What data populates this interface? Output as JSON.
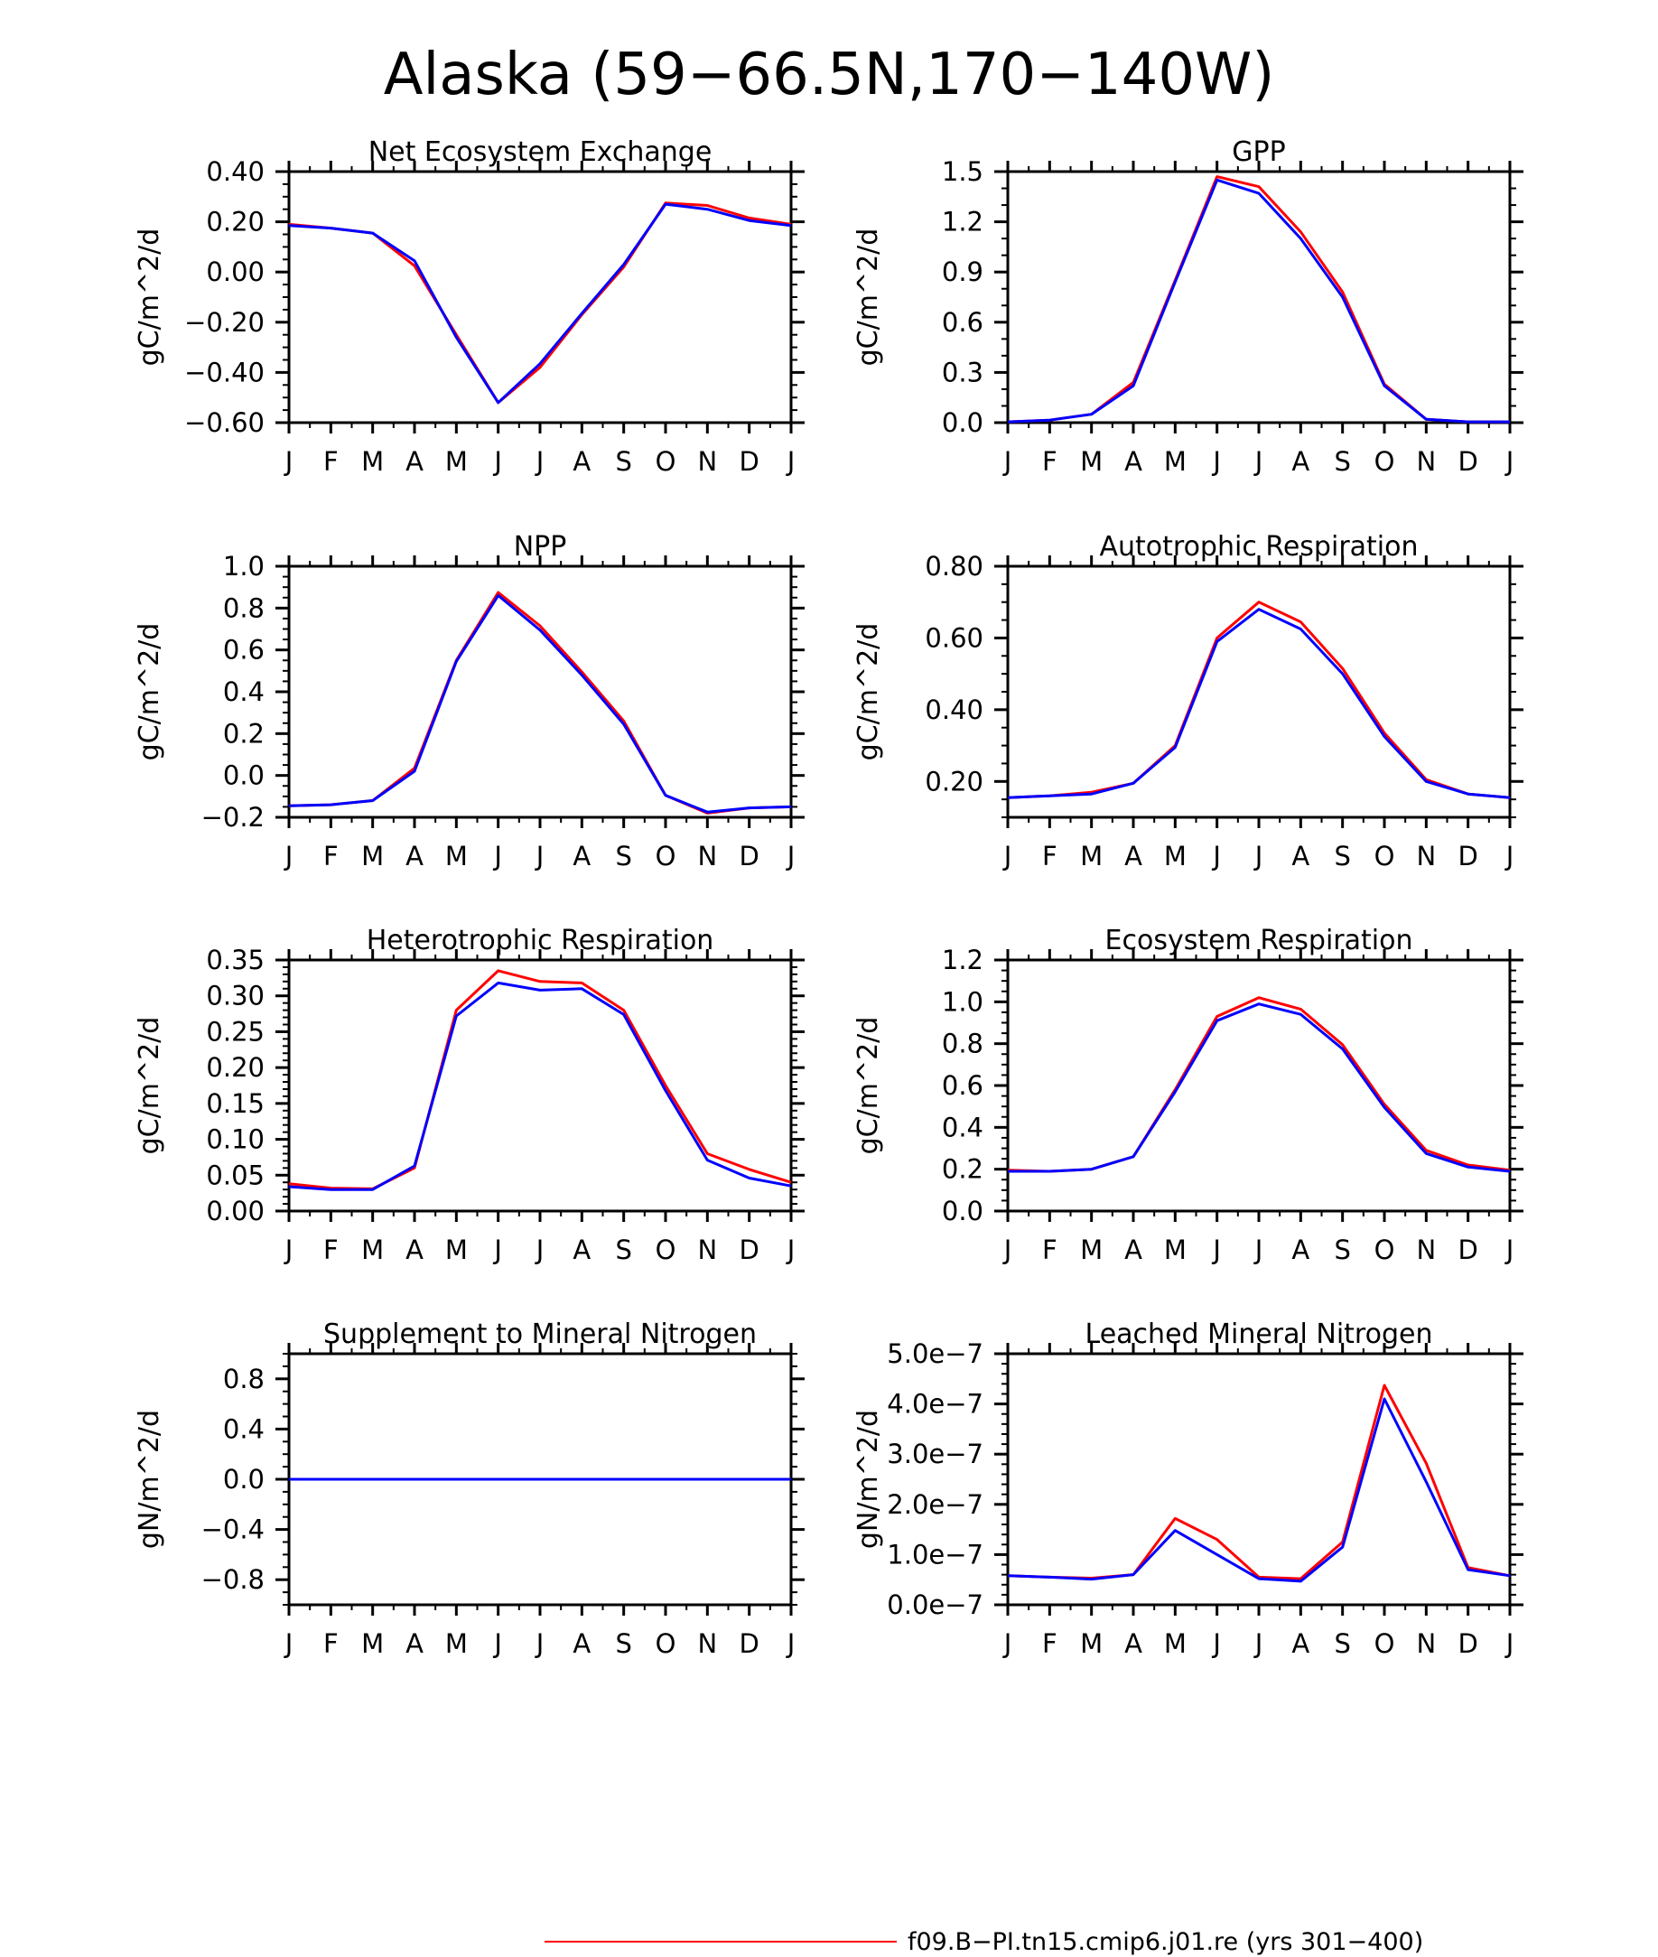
{
  "title": "Alaska (59−66.5N,170−140W)",
  "legend": [
    {
      "label": "f09.B−PI.tn15.cmip6.j01.re (yrs 301−400)",
      "color": "#ff0000"
    }
  ],
  "series_colors": [
    "#ff0000",
    "#0000ff"
  ],
  "chart_data": [
    {
      "type": "line",
      "title": "Net Ecosystem Exchange",
      "ylabel": "gC/m^2/d",
      "x": [
        "J",
        "F",
        "M",
        "A",
        "M",
        "J",
        "J",
        "A",
        "S",
        "O",
        "N",
        "D",
        "J"
      ],
      "ylim": [
        -0.6,
        0.4
      ],
      "yticks": [
        -0.6,
        -0.4,
        -0.2,
        0.0,
        0.2,
        0.4
      ],
      "ytick_labels": [
        "−0.60",
        "−0.40",
        "−0.20",
        "0.00",
        "0.20",
        "0.40"
      ],
      "yminor": 0.05,
      "series": [
        {
          "values": [
            0.19,
            0.175,
            0.155,
            0.025,
            -0.25,
            -0.52,
            -0.38,
            -0.17,
            0.02,
            0.275,
            0.265,
            0.215,
            0.19
          ]
        },
        {
          "values": [
            0.185,
            0.175,
            0.155,
            0.045,
            -0.26,
            -0.52,
            -0.365,
            -0.165,
            0.03,
            0.27,
            0.25,
            0.205,
            0.185
          ]
        }
      ]
    },
    {
      "type": "line",
      "title": "GPP",
      "ylabel": "gC/m^2/d",
      "x": [
        "J",
        "F",
        "M",
        "A",
        "M",
        "J",
        "J",
        "A",
        "S",
        "O",
        "N",
        "D",
        "J"
      ],
      "ylim": [
        0,
        1.5
      ],
      "yticks": [
        0,
        0.3,
        0.6,
        0.9,
        1.2,
        1.5
      ],
      "ytick_labels": [
        "0.0",
        "0.3",
        "0.6",
        "0.9",
        "1.2",
        "1.5"
      ],
      "yminor": 0.1,
      "series": [
        {
          "values": [
            0.005,
            0.015,
            0.05,
            0.24,
            0.85,
            1.47,
            1.41,
            1.14,
            0.78,
            0.23,
            0.02,
            0.005,
            0.005
          ]
        },
        {
          "values": [
            0.005,
            0.015,
            0.05,
            0.22,
            0.84,
            1.45,
            1.37,
            1.1,
            0.75,
            0.22,
            0.02,
            0.005,
            0.005
          ]
        }
      ]
    },
    {
      "type": "line",
      "title": "NPP",
      "ylabel": "gC/m^2/d",
      "x": [
        "J",
        "F",
        "M",
        "A",
        "M",
        "J",
        "J",
        "A",
        "S",
        "O",
        "N",
        "D",
        "J"
      ],
      "ylim": [
        -0.2,
        1.0
      ],
      "yticks": [
        -0.2,
        0.0,
        0.2,
        0.4,
        0.6,
        0.8,
        1.0
      ],
      "ytick_labels": [
        "−0.2",
        "0.0",
        "0.2",
        "0.4",
        "0.6",
        "0.8",
        "1.0"
      ],
      "yminor": 0.05,
      "series": [
        {
          "values": [
            -0.145,
            -0.14,
            -0.12,
            0.035,
            0.55,
            0.875,
            0.715,
            0.495,
            0.26,
            -0.095,
            -0.18,
            -0.155,
            -0.15
          ]
        },
        {
          "values": [
            -0.145,
            -0.14,
            -0.12,
            0.02,
            0.545,
            0.86,
            0.695,
            0.48,
            0.245,
            -0.095,
            -0.175,
            -0.155,
            -0.15
          ]
        }
      ]
    },
    {
      "type": "line",
      "title": "Autotrophic Respiration",
      "ylabel": "gC/m^2/d",
      "x": [
        "J",
        "F",
        "M",
        "A",
        "M",
        "J",
        "J",
        "A",
        "S",
        "O",
        "N",
        "D",
        "J"
      ],
      "ylim": [
        0.1,
        0.8
      ],
      "yticks": [
        0.2,
        0.4,
        0.6,
        0.8
      ],
      "ytick_labels": [
        "0.20",
        "0.40",
        "0.60",
        "0.80"
      ],
      "yminor": 0.05,
      "series": [
        {
          "values": [
            0.155,
            0.16,
            0.17,
            0.195,
            0.3,
            0.6,
            0.7,
            0.645,
            0.515,
            0.335,
            0.205,
            0.165,
            0.155
          ]
        },
        {
          "values": [
            0.155,
            0.16,
            0.165,
            0.195,
            0.295,
            0.59,
            0.68,
            0.625,
            0.5,
            0.325,
            0.2,
            0.165,
            0.155
          ]
        }
      ]
    },
    {
      "type": "line",
      "title": "Heterotrophic Respiration",
      "ylabel": "gC/m^2/d",
      "x": [
        "J",
        "F",
        "M",
        "A",
        "M",
        "J",
        "J",
        "A",
        "S",
        "O",
        "N",
        "D",
        "J"
      ],
      "ylim": [
        0,
        0.35
      ],
      "yticks": [
        0,
        0.05,
        0.1,
        0.15,
        0.2,
        0.25,
        0.3,
        0.35
      ],
      "ytick_labels": [
        "0.00",
        "0.05",
        "0.10",
        "0.15",
        "0.20",
        "0.25",
        "0.30",
        "0.35"
      ],
      "yminor": 0.01,
      "series": [
        {
          "values": [
            0.038,
            0.032,
            0.031,
            0.06,
            0.28,
            0.335,
            0.32,
            0.318,
            0.28,
            0.175,
            0.08,
            0.058,
            0.04
          ]
        },
        {
          "values": [
            0.034,
            0.03,
            0.03,
            0.063,
            0.272,
            0.318,
            0.308,
            0.31,
            0.274,
            0.168,
            0.071,
            0.046,
            0.035
          ]
        }
      ]
    },
    {
      "type": "line",
      "title": "Ecosystem Respiration",
      "ylabel": "gC/m^2/d",
      "x": [
        "J",
        "F",
        "M",
        "A",
        "M",
        "J",
        "J",
        "A",
        "S",
        "O",
        "N",
        "D",
        "J"
      ],
      "ylim": [
        0,
        1.2
      ],
      "yticks": [
        0,
        0.2,
        0.4,
        0.6,
        0.8,
        1.0,
        1.2
      ],
      "ytick_labels": [
        "0.0",
        "0.2",
        "0.4",
        "0.6",
        "0.8",
        "1.0",
        "1.2"
      ],
      "yminor": 0.05,
      "series": [
        {
          "values": [
            0.195,
            0.19,
            0.2,
            0.26,
            0.58,
            0.93,
            1.02,
            0.965,
            0.795,
            0.51,
            0.29,
            0.22,
            0.195
          ]
        },
        {
          "values": [
            0.19,
            0.19,
            0.2,
            0.26,
            0.57,
            0.91,
            0.99,
            0.94,
            0.775,
            0.495,
            0.275,
            0.21,
            0.19
          ]
        }
      ]
    },
    {
      "type": "line",
      "title": "Supplement to Mineral Nitrogen",
      "ylabel": "gN/m^2/d",
      "x": [
        "J",
        "F",
        "M",
        "A",
        "M",
        "J",
        "J",
        "A",
        "S",
        "O",
        "N",
        "D",
        "J"
      ],
      "ylim": [
        -1.0,
        1.0
      ],
      "yticks": [
        -0.8,
        -0.4,
        0.0,
        0.4,
        0.8
      ],
      "ytick_labels": [
        "−0.8",
        "−0.4",
        "0.0",
        "0.4",
        "0.8"
      ],
      "yminor": 0.1,
      "series": [
        {
          "values": [
            0,
            0,
            0,
            0,
            0,
            0,
            0,
            0,
            0,
            0,
            0,
            0,
            0
          ]
        },
        {
          "values": [
            0,
            0,
            0,
            0,
            0,
            0,
            0,
            0,
            0,
            0,
            0,
            0,
            0
          ]
        }
      ]
    },
    {
      "type": "line",
      "title": "Leached Mineral Nitrogen",
      "ylabel": "gN/m^2/d",
      "x": [
        "J",
        "F",
        "M",
        "A",
        "M",
        "J",
        "J",
        "A",
        "S",
        "O",
        "N",
        "D",
        "J"
      ],
      "ylim": [
        0,
        5e-07
      ],
      "yticks": [
        0,
        1e-07,
        2e-07,
        3e-07,
        4e-07,
        5e-07
      ],
      "ytick_labels": [
        "0.0e−7",
        "1.0e−7",
        "2.0e−7",
        "3.0e−7",
        "4.0e−7",
        "5.0e−7"
      ],
      "yminor": 2e-08,
      "series": [
        {
          "values": [
            5.8e-08,
            5.5e-08,
            5.3e-08,
            6e-08,
            1.72e-07,
            1.3e-07,
            5.5e-08,
            5.2e-08,
            1.25e-07,
            4.37e-07,
            2.82e-07,
            7.4e-08,
            5.8e-08
          ]
        },
        {
          "values": [
            5.8e-08,
            5.5e-08,
            5.1e-08,
            6e-08,
            1.48e-07,
            1e-07,
            5.2e-08,
            4.7e-08,
            1.15e-07,
            4.1e-07,
            2.45e-07,
            7e-08,
            5.8e-08
          ]
        }
      ]
    }
  ]
}
